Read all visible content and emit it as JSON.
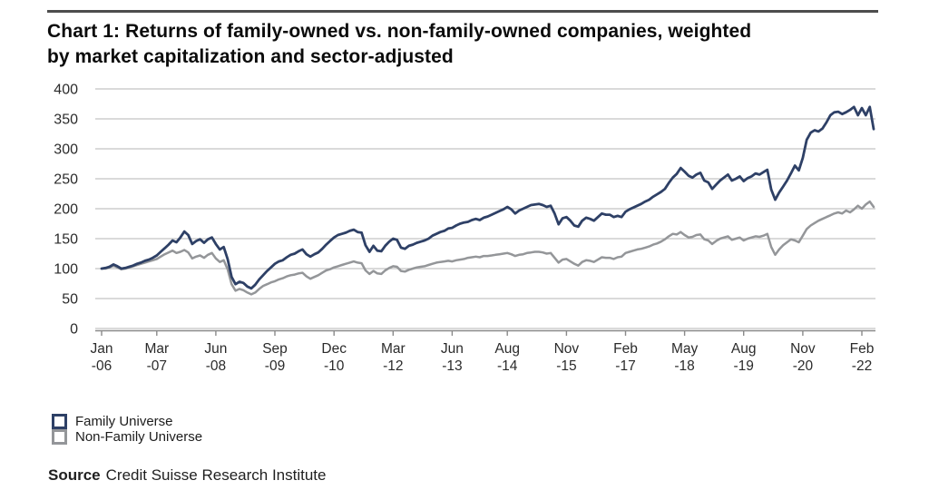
{
  "header": {
    "title_line1": "Chart 1: Returns of family-owned vs. non-family-owned companies, weighted",
    "title_line2": "by market capitalization and sector-adjusted"
  },
  "legend": {
    "items": [
      {
        "label": "Family Universe"
      },
      {
        "label": "Non-Family Universe"
      }
    ]
  },
  "source": {
    "label": "Source",
    "text": "Credit Suisse Research Institute"
  },
  "colors": {
    "rule": "#4d4d4d",
    "gridline": "#c3c3c3",
    "axis": "#8a8a8a",
    "text": "#2b2b2b"
  },
  "chart_data": {
    "type": "line",
    "title": "Chart 1: Returns of family-owned vs. non-family-owned companies, weighted by market capitalization and sector-adjusted",
    "xlabel": "",
    "ylabel": "",
    "ylim": [
      0,
      400
    ],
    "y_ticks": [
      0,
      50,
      100,
      150,
      200,
      250,
      300,
      350,
      400
    ],
    "grid": "horizontal",
    "legend_position": "bottom-left",
    "x_frequency": "monthly",
    "x_start": "Jan-06",
    "x_tick_labels_month": [
      "Jan",
      "Mar",
      "Jun",
      "Sep",
      "Dec",
      "Mar",
      "Jun",
      "Aug",
      "Nov",
      "Feb",
      "May",
      "Aug",
      "Nov",
      "Feb"
    ],
    "x_tick_labels_year": [
      "-06",
      "-07",
      "-08",
      "-09",
      "-10",
      "-12",
      "-13",
      "-14",
      "-15",
      "-17",
      "-18",
      "-19",
      "-20",
      "-22"
    ],
    "x_tick_month_indices": [
      0,
      14,
      29,
      44,
      59,
      74,
      89,
      103,
      118,
      133,
      148,
      163,
      178,
      193
    ],
    "series": [
      {
        "name": "Family Universe",
        "color": "#2e4066",
        "stroke_width": 2.8,
        "values": [
          100,
          101,
          103,
          107,
          104,
          100,
          101,
          103,
          105,
          108,
          110,
          113,
          115,
          118,
          122,
          128,
          134,
          140,
          147,
          144,
          152,
          162,
          156,
          141,
          146,
          149,
          143,
          149,
          152,
          141,
          132,
          136,
          116,
          86,
          74,
          78,
          76,
          70,
          67,
          73,
          82,
          89,
          96,
          102,
          108,
          112,
          114,
          119,
          123,
          125,
          129,
          132,
          124,
          120,
          124,
          127,
          133,
          140,
          146,
          152,
          156,
          158,
          160,
          163,
          165,
          161,
          160,
          139,
          128,
          138,
          130,
          129,
          138,
          145,
          150,
          148,
          135,
          133,
          138,
          140,
          143,
          145,
          147,
          150,
          155,
          158,
          161,
          163,
          167,
          168,
          172,
          175,
          177,
          178,
          181,
          183,
          181,
          185,
          187,
          190,
          193,
          196,
          199,
          203,
          199,
          192,
          197,
          200,
          203,
          206,
          207,
          208,
          206,
          203,
          205,
          192,
          174,
          184,
          186,
          180,
          172,
          170,
          180,
          185,
          183,
          180,
          186,
          192,
          190,
          190,
          186,
          188,
          186,
          195,
          199,
          202,
          205,
          208,
          212,
          215,
          220,
          224,
          228,
          233,
          243,
          252,
          258,
          268,
          262,
          255,
          252,
          257,
          260,
          247,
          244,
          233,
          240,
          247,
          252,
          257,
          247,
          250,
          254,
          246,
          251,
          254,
          259,
          257,
          261,
          265,
          232,
          215,
          227,
          237,
          247,
          259,
          272,
          264,
          285,
          315,
          327,
          331,
          329,
          334,
          344,
          356,
          361,
          362,
          358,
          361,
          365,
          370,
          356,
          368,
          356,
          370,
          333
        ]
      },
      {
        "name": "Non-Family Universe",
        "color": "#949699",
        "stroke_width": 2.5,
        "values": [
          100,
          100,
          102,
          105,
          102,
          99,
          100,
          102,
          104,
          106,
          108,
          110,
          112,
          114,
          116,
          120,
          124,
          127,
          130,
          126,
          128,
          131,
          127,
          117,
          120,
          122,
          118,
          123,
          126,
          117,
          111,
          114,
          99,
          74,
          63,
          66,
          64,
          60,
          57,
          60,
          66,
          71,
          74,
          77,
          79,
          82,
          84,
          87,
          89,
          90,
          92,
          93,
          87,
          83,
          86,
          89,
          93,
          97,
          99,
          102,
          104,
          106,
          108,
          110,
          112,
          110,
          109,
          97,
          91,
          96,
          92,
          91,
          97,
          101,
          104,
          103,
          96,
          95,
          98,
          100,
          102,
          103,
          104,
          106,
          108,
          110,
          111,
          112,
          113,
          112,
          114,
          115,
          116,
          118,
          119,
          120,
          119,
          121,
          121,
          122,
          123,
          124,
          125,
          126,
          124,
          121,
          123,
          124,
          126,
          127,
          128,
          128,
          127,
          125,
          126,
          118,
          110,
          115,
          116,
          112,
          108,
          105,
          111,
          114,
          113,
          111,
          115,
          119,
          118,
          118,
          116,
          119,
          120,
          126,
          128,
          130,
          132,
          133,
          135,
          137,
          140,
          142,
          145,
          149,
          154,
          158,
          157,
          161,
          156,
          152,
          153,
          156,
          157,
          149,
          147,
          141,
          146,
          150,
          152,
          154,
          148,
          150,
          152,
          147,
          150,
          152,
          154,
          153,
          155,
          158,
          136,
          123,
          132,
          139,
          144,
          149,
          147,
          144,
          155,
          166,
          172,
          176,
          180,
          183,
          186,
          189,
          192,
          194,
          192,
          197,
          194,
          199,
          205,
          200,
          207,
          212,
          203
        ]
      }
    ]
  }
}
